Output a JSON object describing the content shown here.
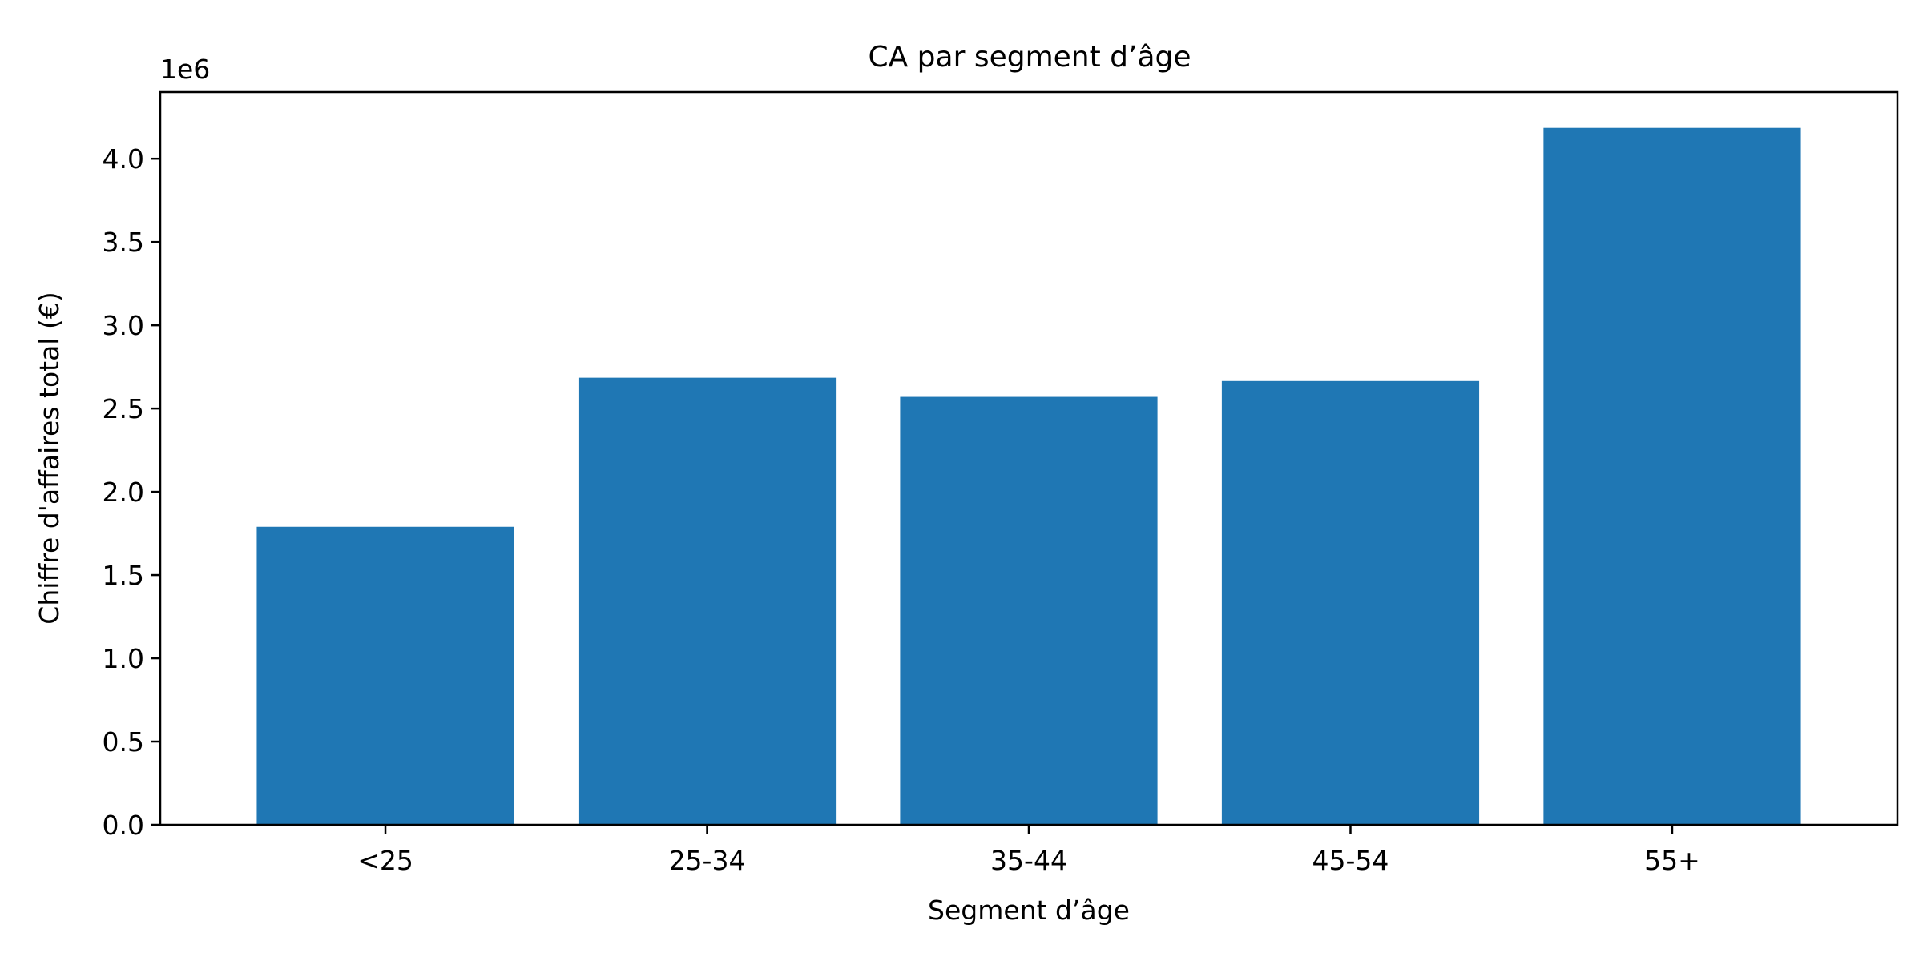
{
  "chart_data": {
    "type": "bar",
    "title": "CA par segment d’âge",
    "xlabel": "Segment d’âge",
    "ylabel": "Chiffre d'affaires total (€)",
    "y_offset_label": "1e6",
    "categories": [
      "<25",
      "25-34",
      "35-44",
      "45-54",
      "55+"
    ],
    "values": [
      1790000,
      2685000,
      2570000,
      2665000,
      4185000
    ],
    "ylim": [
      0,
      4400000
    ],
    "y_ticks": [
      0,
      500000,
      1000000,
      1500000,
      2000000,
      2500000,
      3000000,
      3500000,
      4000000
    ],
    "y_tick_labels": [
      "0.0",
      "0.5",
      "1.0",
      "1.5",
      "2.0",
      "2.5",
      "3.0",
      "3.5",
      "4.0"
    ],
    "grid": false,
    "bar_color": "#1f77b4"
  }
}
